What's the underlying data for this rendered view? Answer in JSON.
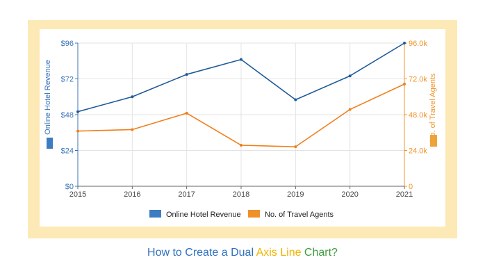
{
  "caption": {
    "part1": "How to Create a Dual ",
    "part2": "Axis Line",
    "part3": " Chart?",
    "colors": [
      "#2f6fbf",
      "#f0b400",
      "#3e9b3e"
    ]
  },
  "chart_data": {
    "type": "line",
    "categories": [
      "2015",
      "2016",
      "2017",
      "2018",
      "2019",
      "2020",
      "2021"
    ],
    "series": [
      {
        "name": "Online Hotel Revenue",
        "axis": "left",
        "color": "#1f5b99",
        "values": [
          50,
          60,
          75,
          85,
          58,
          74,
          96
        ]
      },
      {
        "name": "No. of Travel Agents",
        "axis": "right",
        "color": "#f07f1b",
        "values": [
          37000,
          38000,
          49000,
          27500,
          26500,
          51500,
          68500
        ]
      }
    ],
    "y_left": {
      "label": "Online Hotel Revenue",
      "ylim": [
        0,
        96
      ],
      "ticks": [
        0,
        24,
        48,
        72,
        96
      ],
      "tick_labels": [
        "$0",
        "$24",
        "$48",
        "$72",
        "$96"
      ],
      "color": "#3a74b8"
    },
    "y_right": {
      "label": "No. of Travel Agents",
      "ylim": [
        0,
        96000
      ],
      "ticks": [
        0,
        24000,
        48000,
        72000,
        96000
      ],
      "tick_labels": [
        "0",
        "24.0k",
        "48.0k",
        "72.0k",
        "96.0k"
      ],
      "color": "#f0942b"
    },
    "grid": true,
    "legend": "bottom"
  }
}
